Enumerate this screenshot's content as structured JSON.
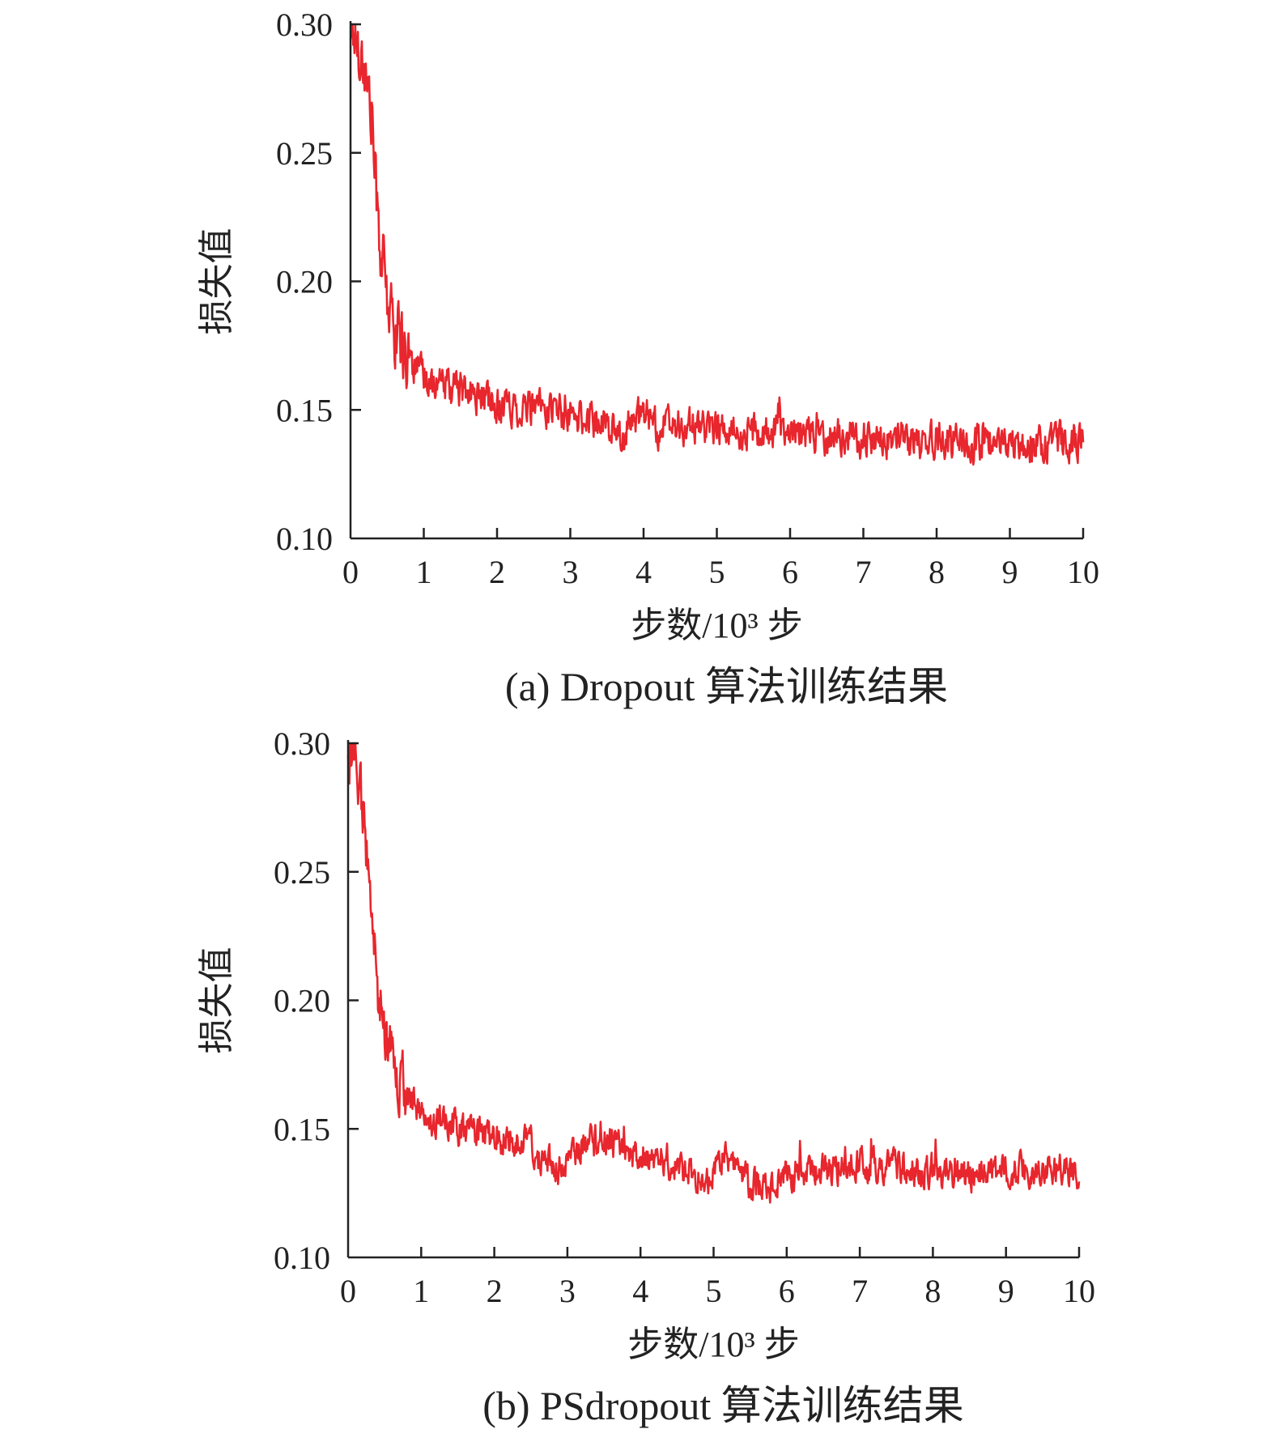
{
  "colors": {
    "series": "#e8262d",
    "axis": "#222222"
  },
  "chart_data": [
    {
      "type": "line",
      "caption": "(a) Dropout 算法训练结果",
      "xlabel": "步数/10³ 步",
      "ylabel": "损失值",
      "xlim": [
        0,
        10
      ],
      "ylim": [
        0.1,
        0.3
      ],
      "x_ticks": [
        "0",
        "1",
        "2",
        "3",
        "4",
        "5",
        "6",
        "7",
        "8",
        "9",
        "10"
      ],
      "y_ticks": [
        "0.10",
        "0.15",
        "0.20",
        "0.25",
        "0.30"
      ],
      "grid": false,
      "noise_amplitude": 0.011,
      "series": [
        {
          "x": [
            0,
            0.1,
            0.2,
            0.3,
            0.35,
            0.4,
            0.45,
            0.5,
            0.6,
            0.7,
            0.8,
            1.0,
            1.2,
            1.5,
            1.8,
            2.0,
            2.3,
            2.5,
            2.8,
            3.0,
            3.3,
            3.5,
            3.6,
            3.7,
            3.8,
            4.0,
            4.2,
            4.5,
            5.0,
            5.5,
            5.8,
            6.0,
            6.5,
            7.0,
            7.5,
            8.0,
            8.5,
            9.0,
            9.5,
            10.0
          ],
          "y": [
            0.3,
            0.293,
            0.282,
            0.262,
            0.235,
            0.215,
            0.205,
            0.192,
            0.182,
            0.175,
            0.17,
            0.162,
            0.16,
            0.157,
            0.155,
            0.152,
            0.151,
            0.15,
            0.15,
            0.147,
            0.146,
            0.146,
            0.14,
            0.137,
            0.145,
            0.148,
            0.143,
            0.143,
            0.143,
            0.142,
            0.141,
            0.141,
            0.14,
            0.139,
            0.138,
            0.138,
            0.137,
            0.137,
            0.137,
            0.138
          ]
        }
      ]
    },
    {
      "type": "line",
      "caption": "(b) PSdropout 算法训练结果",
      "xlabel": "步数/10³ 步",
      "ylabel": "损失值",
      "xlim": [
        0,
        10
      ],
      "ylim": [
        0.1,
        0.3
      ],
      "x_ticks": [
        "0",
        "1",
        "2",
        "3",
        "4",
        "5",
        "6",
        "7",
        "8",
        "9",
        "10"
      ],
      "y_ticks": [
        "0.10",
        "0.15",
        "0.20",
        "0.25",
        "0.30"
      ],
      "grid": false,
      "noise_amplitude": 0.01,
      "series": [
        {
          "x": [
            0,
            0.1,
            0.2,
            0.3,
            0.35,
            0.4,
            0.5,
            0.6,
            0.7,
            0.8,
            1.0,
            1.2,
            1.5,
            1.8,
            2.0,
            2.3,
            2.5,
            2.6,
            2.8,
            3.0,
            3.2,
            3.5,
            3.7,
            3.8,
            4.0,
            4.3,
            4.6,
            4.9,
            5.0,
            5.2,
            5.5,
            5.8,
            6.0,
            6.5,
            7.0,
            7.5,
            8.0,
            8.5,
            9.0,
            9.5,
            10.0
          ],
          "y": [
            0.3,
            0.292,
            0.275,
            0.245,
            0.225,
            0.21,
            0.192,
            0.178,
            0.168,
            0.164,
            0.158,
            0.153,
            0.15,
            0.148,
            0.146,
            0.145,
            0.145,
            0.138,
            0.135,
            0.137,
            0.143,
            0.146,
            0.144,
            0.139,
            0.139,
            0.139,
            0.134,
            0.129,
            0.136,
            0.139,
            0.129,
            0.127,
            0.132,
            0.134,
            0.136,
            0.136,
            0.131,
            0.132,
            0.134,
            0.134,
            0.133
          ]
        }
      ]
    }
  ]
}
